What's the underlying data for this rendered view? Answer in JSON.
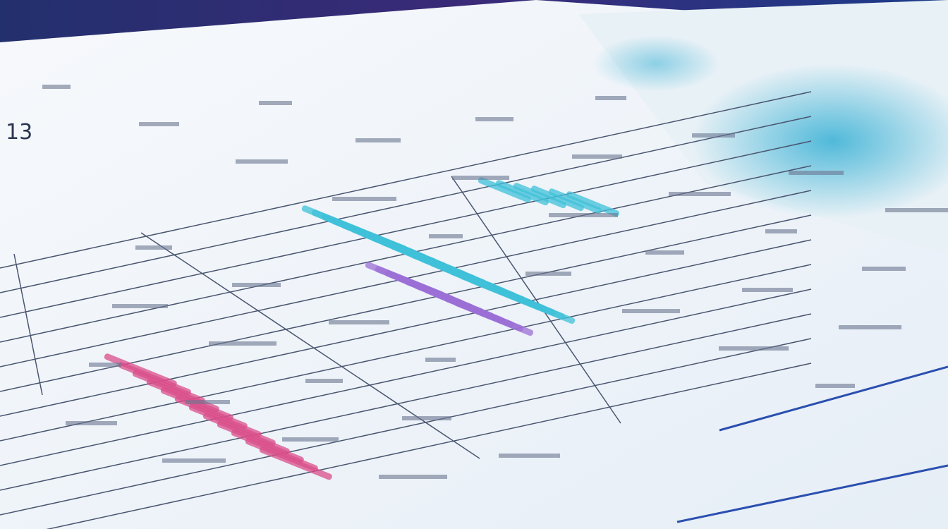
{
  "scene": {
    "page_number": "13",
    "colors": {
      "background": "#1d2a6b",
      "paper": "#f4f7fb",
      "cyan": "#3fc0d8",
      "purple": "#9b6fd6",
      "pink": "#d94d8a",
      "blue_line": "#2b4fb0"
    }
  }
}
